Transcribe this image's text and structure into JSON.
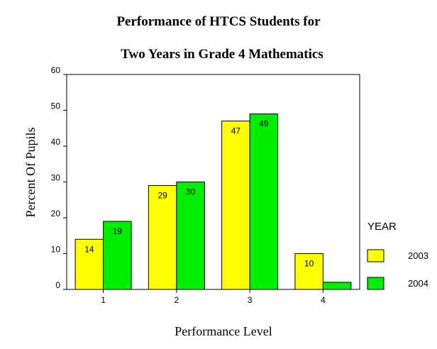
{
  "chart_data": {
    "type": "bar",
    "title_line1": "Performance of HTCS Students for",
    "title_line2": "Two Years in Grade 4 Mathematics",
    "xlabel": "Performance Level",
    "ylabel": "Percent Of Pupils",
    "categories": [
      "1",
      "2",
      "3",
      "4"
    ],
    "yticks": [
      0,
      10,
      20,
      30,
      40,
      50,
      60
    ],
    "ylim": [
      0,
      60
    ],
    "grid": false,
    "legend_title": "YEAR",
    "legend_position": "right",
    "series": [
      {
        "name": "2003",
        "color": "#ffff00",
        "values": [
          14,
          29,
          47,
          10
        ],
        "labels": [
          "14",
          "29",
          "47",
          "10"
        ]
      },
      {
        "name": "2004",
        "color": "#00ee00",
        "values": [
          19,
          30,
          49,
          2
        ],
        "labels": [
          "19",
          "30",
          "49",
          ""
        ]
      }
    ]
  }
}
